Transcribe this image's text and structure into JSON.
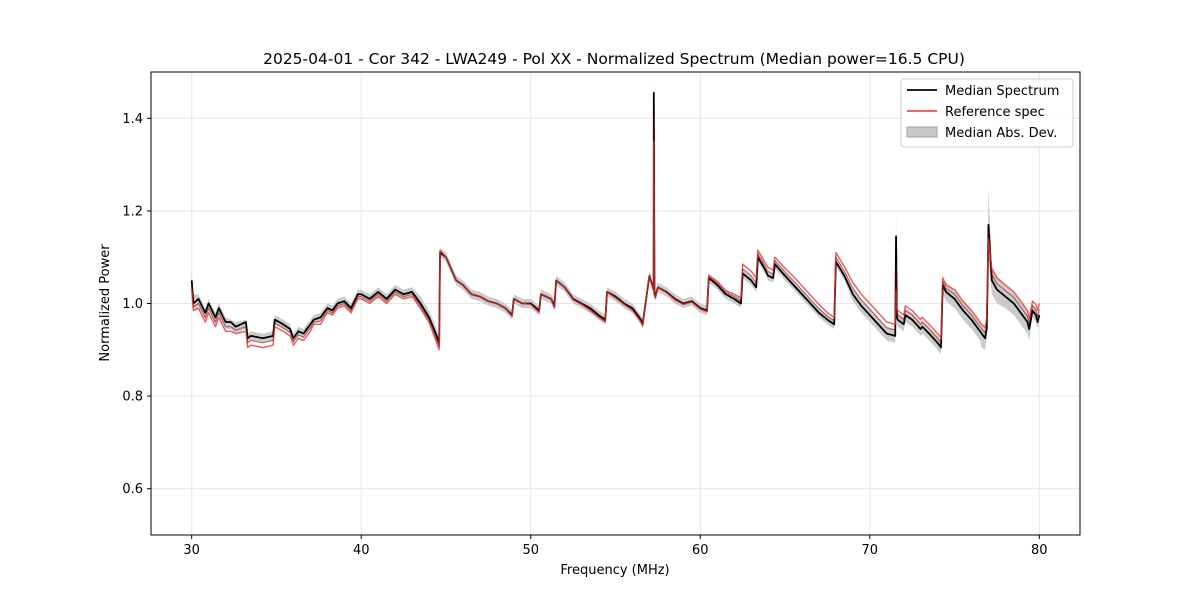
{
  "chart_data": {
    "type": "line",
    "title": "2025-04-01 - Cor 342 - LWA249 - Pol XX - Normalized Spectrum (Median power=16.5 CPU)",
    "xlabel": "Frequency (MHz)",
    "ylabel": "Normalized Power",
    "xlim": [
      27.6,
      82.4
    ],
    "ylim": [
      0.5,
      1.5
    ],
    "xticks": [
      30,
      40,
      50,
      60,
      70,
      80
    ],
    "yticks": [
      0.6,
      0.8,
      1.0,
      1.2,
      1.4
    ],
    "xtick_labels": [
      "30",
      "40",
      "50",
      "60",
      "70",
      "80"
    ],
    "ytick_labels": [
      "0.6",
      "0.8",
      "1.0",
      "1.2",
      "1.4"
    ],
    "grid": true,
    "legend": {
      "position": "upper-right",
      "entries": [
        {
          "label": "Median Spectrum",
          "color": "#000000",
          "kind": "line"
        },
        {
          "label": "Reference spec",
          "color": "#e8514f",
          "kind": "line"
        },
        {
          "label": "Median Abs. Dev.",
          "color": "#c8c8c8",
          "kind": "patch"
        }
      ]
    },
    "series": [
      {
        "name": "Median Spectrum",
        "color": "#000000",
        "x": [
          30.0,
          30.1,
          30.4,
          30.8,
          31.0,
          31.4,
          31.6,
          32.0,
          32.3,
          32.6,
          33.2,
          33.3,
          33.5,
          34.2,
          34.8,
          34.9,
          35.4,
          35.8,
          36.0,
          36.3,
          36.6,
          37.0,
          37.2,
          37.6,
          38.0,
          38.3,
          38.6,
          39.0,
          39.4,
          39.8,
          40.0,
          40.5,
          41.0,
          41.5,
          42.0,
          42.5,
          43.0,
          43.5,
          44.0,
          44.4,
          44.6,
          44.65,
          45.0,
          45.3,
          45.6,
          46.0,
          46.5,
          47.0,
          47.5,
          48.0,
          48.5,
          48.9,
          49.0,
          49.5,
          50.0,
          50.5,
          50.6,
          51.2,
          51.4,
          51.5,
          52.0,
          52.5,
          53.0,
          53.5,
          54.0,
          54.4,
          54.5,
          55.0,
          55.5,
          56.0,
          56.5,
          56.6,
          57.0,
          57.25,
          57.26,
          57.3,
          57.35,
          57.5,
          58.0,
          58.5,
          59.0,
          59.5,
          60.0,
          60.4,
          60.5,
          61.0,
          61.5,
          62.0,
          62.4,
          62.5,
          63.0,
          63.3,
          63.4,
          63.8,
          64.0,
          64.3,
          64.4,
          65.0,
          65.5,
          66.0,
          66.5,
          67.0,
          67.5,
          67.9,
          68.0,
          68.5,
          69.0,
          69.5,
          70.0,
          70.5,
          71.0,
          71.5,
          71.55,
          71.6,
          71.65,
          72.0,
          72.1,
          72.5,
          73.0,
          73.1,
          73.5,
          74.0,
          74.2,
          74.3,
          74.5,
          75.0,
          75.5,
          76.0,
          76.5,
          76.6,
          76.8,
          76.9,
          76.95,
          77.0,
          77.2,
          77.5,
          78.0,
          78.5,
          79.0,
          79.3,
          79.4,
          79.6,
          79.8,
          79.9,
          80.0
        ],
        "values": [
          1.05,
          1.0,
          1.01,
          0.98,
          1.0,
          0.97,
          0.99,
          0.96,
          0.96,
          0.95,
          0.96,
          0.925,
          0.93,
          0.925,
          0.93,
          0.965,
          0.955,
          0.945,
          0.925,
          0.94,
          0.935,
          0.955,
          0.965,
          0.97,
          0.99,
          0.985,
          1.0,
          1.005,
          0.99,
          1.02,
          1.02,
          1.01,
          1.025,
          1.01,
          1.03,
          1.02,
          1.025,
          1.0,
          0.97,
          0.935,
          0.915,
          1.11,
          1.1,
          1.075,
          1.05,
          1.04,
          1.02,
          1.015,
          1.005,
          1.0,
          0.99,
          0.975,
          1.01,
          1.0,
          1.0,
          0.985,
          1.02,
          1.01,
          0.995,
          1.05,
          1.035,
          1.01,
          1.0,
          0.99,
          0.975,
          0.965,
          1.025,
          1.015,
          1.0,
          0.99,
          0.965,
          0.955,
          1.06,
          1.03,
          1.455,
          1.02,
          1.015,
          1.035,
          1.025,
          1.01,
          1.0,
          1.005,
          0.99,
          0.985,
          1.055,
          1.04,
          1.02,
          1.01,
          1.0,
          1.065,
          1.05,
          1.035,
          1.1,
          1.075,
          1.06,
          1.055,
          1.085,
          1.06,
          1.04,
          1.02,
          1.0,
          0.98,
          0.965,
          0.955,
          1.09,
          1.06,
          1.02,
          0.995,
          0.975,
          0.955,
          0.935,
          0.93,
          1.145,
          0.97,
          0.965,
          0.955,
          0.975,
          0.965,
          0.945,
          0.95,
          0.935,
          0.915,
          0.905,
          1.04,
          1.025,
          1.01,
          0.985,
          0.965,
          0.94,
          0.935,
          0.925,
          0.945,
          1.045,
          1.17,
          1.05,
          1.03,
          1.015,
          1.0,
          0.975,
          0.96,
          0.945,
          0.985,
          0.975,
          0.96,
          0.975
        ]
      },
      {
        "name": "Reference spec",
        "color": "#e8514f",
        "x": [
          30.0,
          30.1,
          30.4,
          30.8,
          31.0,
          31.4,
          31.6,
          32.0,
          32.3,
          32.6,
          33.2,
          33.3,
          33.5,
          34.2,
          34.8,
          34.9,
          35.4,
          35.8,
          36.0,
          36.3,
          36.6,
          37.0,
          37.2,
          37.6,
          38.0,
          38.3,
          38.6,
          39.0,
          39.4,
          39.8,
          40.0,
          40.5,
          41.0,
          41.5,
          42.0,
          42.5,
          43.0,
          43.5,
          44.0,
          44.4,
          44.6,
          44.65,
          45.0,
          45.3,
          45.6,
          46.0,
          46.5,
          47.0,
          47.5,
          48.0,
          48.5,
          48.9,
          49.0,
          49.5,
          50.0,
          50.5,
          50.6,
          51.2,
          51.4,
          51.5,
          52.0,
          52.5,
          53.0,
          53.5,
          54.0,
          54.4,
          54.5,
          55.0,
          55.5,
          56.0,
          56.5,
          56.6,
          57.0,
          57.25,
          57.26,
          57.3,
          57.35,
          57.5,
          58.0,
          58.5,
          59.0,
          59.5,
          60.0,
          60.4,
          60.5,
          61.0,
          61.5,
          62.0,
          62.4,
          62.5,
          63.0,
          63.3,
          63.4,
          63.8,
          64.0,
          64.3,
          64.4,
          65.0,
          65.5,
          66.0,
          66.5,
          67.0,
          67.5,
          67.9,
          68.0,
          68.5,
          69.0,
          69.5,
          70.0,
          70.5,
          71.0,
          71.5,
          71.55,
          71.6,
          71.65,
          72.0,
          72.1,
          72.5,
          73.0,
          73.1,
          73.5,
          74.0,
          74.2,
          74.3,
          74.5,
          75.0,
          75.5,
          76.0,
          76.5,
          76.6,
          76.8,
          76.9,
          76.95,
          77.0,
          77.2,
          77.5,
          78.0,
          78.5,
          79.0,
          79.3,
          79.4,
          79.6,
          79.8,
          79.9,
          80.0
        ],
        "values": [
          1.03,
          0.985,
          0.99,
          0.96,
          0.98,
          0.95,
          0.97,
          0.94,
          0.94,
          0.935,
          0.94,
          0.905,
          0.91,
          0.905,
          0.91,
          0.95,
          0.94,
          0.93,
          0.91,
          0.925,
          0.92,
          0.94,
          0.955,
          0.955,
          0.98,
          0.975,
          0.99,
          0.995,
          0.98,
          1.01,
          1.01,
          1.0,
          1.015,
          1.0,
          1.02,
          1.01,
          1.015,
          0.99,
          0.96,
          0.92,
          0.9,
          1.115,
          1.1,
          1.075,
          1.05,
          1.04,
          1.02,
          1.015,
          1.005,
          1.0,
          0.99,
          0.972,
          1.01,
          1.0,
          0.998,
          0.98,
          1.02,
          1.01,
          0.99,
          1.05,
          1.035,
          1.008,
          0.998,
          0.985,
          0.97,
          0.96,
          1.025,
          1.012,
          0.998,
          0.985,
          0.96,
          0.952,
          1.06,
          1.028,
          1.35,
          1.018,
          1.012,
          1.035,
          1.024,
          1.008,
          0.998,
          1.003,
          0.988,
          0.982,
          1.06,
          1.048,
          1.028,
          1.02,
          1.012,
          1.085,
          1.07,
          1.055,
          1.115,
          1.09,
          1.078,
          1.072,
          1.1,
          1.076,
          1.058,
          1.038,
          1.018,
          0.998,
          0.98,
          0.97,
          1.11,
          1.08,
          1.045,
          1.02,
          1.0,
          0.98,
          0.96,
          0.955,
          1.03,
          0.99,
          0.985,
          0.975,
          0.995,
          0.985,
          0.965,
          0.97,
          0.955,
          0.935,
          0.925,
          1.055,
          1.04,
          1.03,
          1.005,
          0.985,
          0.96,
          0.955,
          0.948,
          0.97,
          1.06,
          1.14,
          1.075,
          1.055,
          1.04,
          1.025,
          1.0,
          0.985,
          0.968,
          1.005,
          0.998,
          0.985,
          1.0
        ]
      }
    ],
    "mad_band": {
      "name": "Median Abs. Dev.",
      "color": "#c8c8c8",
      "x": [
        30.0,
        30.1,
        30.4,
        30.8,
        31.0,
        31.4,
        31.6,
        32.0,
        32.3,
        32.6,
        33.2,
        33.3,
        33.5,
        34.2,
        34.8,
        34.9,
        35.4,
        35.8,
        36.0,
        36.3,
        36.6,
        37.0,
        37.2,
        37.6,
        38.0,
        38.3,
        38.6,
        39.0,
        39.4,
        39.8,
        40.0,
        40.5,
        41.0,
        41.5,
        42.0,
        42.5,
        43.0,
        43.5,
        44.0,
        44.4,
        44.6,
        44.65,
        45.0,
        45.3,
        45.6,
        46.0,
        46.5,
        47.0,
        47.5,
        48.0,
        48.5,
        48.9,
        49.0,
        49.5,
        50.0,
        50.5,
        50.6,
        51.2,
        51.4,
        51.5,
        52.0,
        52.5,
        53.0,
        53.5,
        54.0,
        54.4,
        54.5,
        55.0,
        55.5,
        56.0,
        56.5,
        56.6,
        57.0,
        57.25,
        57.26,
        57.3,
        57.35,
        57.5,
        58.0,
        58.5,
        59.0,
        59.5,
        60.0,
        60.4,
        60.5,
        61.0,
        61.5,
        62.0,
        62.4,
        62.5,
        63.0,
        63.3,
        63.4,
        63.8,
        64.0,
        64.3,
        64.4,
        65.0,
        65.5,
        66.0,
        66.5,
        67.0,
        67.5,
        67.9,
        68.0,
        68.5,
        69.0,
        69.5,
        70.0,
        70.5,
        71.0,
        71.5,
        71.55,
        71.6,
        71.65,
        72.0,
        72.1,
        72.5,
        73.0,
        73.1,
        73.5,
        74.0,
        74.2,
        74.3,
        74.5,
        75.0,
        75.5,
        76.0,
        76.5,
        76.6,
        76.8,
        76.9,
        76.95,
        77.0,
        77.2,
        77.5,
        78.0,
        78.5,
        79.0,
        79.3,
        79.4,
        79.6,
        79.8,
        79.9,
        80.0
      ],
      "upper": [
        1.07,
        1.02,
        1.02,
        0.99,
        1.01,
        0.98,
        1.0,
        0.97,
        0.965,
        0.96,
        0.965,
        0.935,
        0.94,
        0.935,
        0.94,
        0.975,
        0.965,
        0.955,
        0.935,
        0.95,
        0.945,
        0.965,
        0.975,
        0.98,
        1.0,
        0.995,
        1.01,
        1.015,
        1.0,
        1.03,
        1.03,
        1.02,
        1.035,
        1.02,
        1.04,
        1.03,
        1.035,
        1.015,
        0.985,
        0.95,
        0.93,
        1.12,
        1.11,
        1.085,
        1.06,
        1.05,
        1.03,
        1.025,
        1.015,
        1.01,
        1.0,
        0.985,
        1.02,
        1.01,
        1.01,
        0.995,
        1.03,
        1.02,
        1.005,
        1.06,
        1.045,
        1.02,
        1.01,
        1.0,
        0.985,
        0.975,
        1.035,
        1.025,
        1.01,
        1.0,
        0.975,
        0.965,
        1.07,
        1.04,
        1.5,
        1.03,
        1.025,
        1.045,
        1.035,
        1.02,
        1.01,
        1.015,
        1.0,
        0.995,
        1.065,
        1.05,
        1.03,
        1.02,
        1.01,
        1.075,
        1.06,
        1.045,
        1.11,
        1.085,
        1.07,
        1.065,
        1.095,
        1.07,
        1.05,
        1.03,
        1.01,
        0.99,
        0.975,
        0.965,
        1.1,
        1.07,
        1.035,
        1.01,
        0.99,
        0.97,
        0.95,
        0.945,
        1.195,
        0.985,
        0.98,
        0.97,
        0.99,
        0.98,
        0.96,
        0.965,
        0.95,
        0.93,
        0.92,
        1.06,
        1.045,
        1.03,
        1.005,
        0.985,
        0.96,
        0.955,
        0.945,
        0.965,
        1.09,
        1.25,
        1.08,
        1.06,
        1.04,
        1.025,
        1.0,
        0.985,
        0.97,
        1.0,
        0.99,
        0.975,
        0.99
      ],
      "lower": [
        1.03,
        0.98,
        0.995,
        0.965,
        0.985,
        0.955,
        0.975,
        0.945,
        0.945,
        0.935,
        0.945,
        0.915,
        0.92,
        0.915,
        0.92,
        0.955,
        0.945,
        0.935,
        0.915,
        0.93,
        0.925,
        0.945,
        0.955,
        0.96,
        0.98,
        0.975,
        0.99,
        0.995,
        0.98,
        1.01,
        1.01,
        1.0,
        1.015,
        1.0,
        1.02,
        1.01,
        1.015,
        0.985,
        0.955,
        0.92,
        0.9,
        1.1,
        1.09,
        1.065,
        1.04,
        1.03,
        1.01,
        1.005,
        0.995,
        0.99,
        0.98,
        0.965,
        1.0,
        0.99,
        0.99,
        0.975,
        1.01,
        1.0,
        0.985,
        1.04,
        1.025,
        1.0,
        0.99,
        0.98,
        0.965,
        0.955,
        1.015,
        1.005,
        0.99,
        0.98,
        0.955,
        0.945,
        1.05,
        1.02,
        1.35,
        1.01,
        1.005,
        1.025,
        1.015,
        1.0,
        0.99,
        0.995,
        0.98,
        0.975,
        1.045,
        1.03,
        1.01,
        1.0,
        0.99,
        1.055,
        1.04,
        1.025,
        1.09,
        1.065,
        1.05,
        1.045,
        1.075,
        1.05,
        1.03,
        1.01,
        0.99,
        0.97,
        0.955,
        0.945,
        1.08,
        1.05,
        1.005,
        0.98,
        0.96,
        0.94,
        0.92,
        0.915,
        1.095,
        0.955,
        0.95,
        0.94,
        0.96,
        0.95,
        0.93,
        0.935,
        0.92,
        0.9,
        0.89,
        1.02,
        1.005,
        0.99,
        0.965,
        0.945,
        0.92,
        0.905,
        0.9,
        0.925,
        1.0,
        1.09,
        1.02,
        1.0,
        0.99,
        0.975,
        0.95,
        0.935,
        0.92,
        0.97,
        0.96,
        0.945,
        0.96
      ]
    }
  }
}
